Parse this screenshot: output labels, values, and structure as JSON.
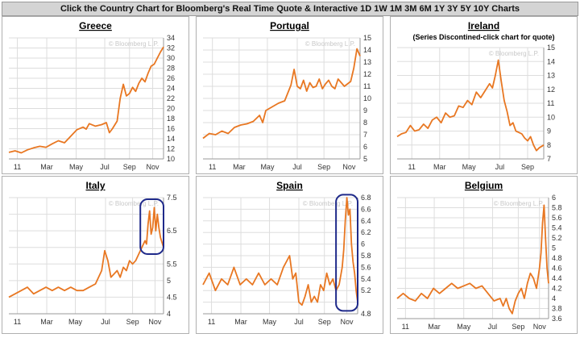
{
  "header": {
    "text": "Click the Country Chart for Bloomberg's Real Time Quote & Interactive 1D 1W 1M 3M 6M 1Y 3Y 5Y 10Y Charts"
  },
  "colors": {
    "line": "#e87722",
    "highlight": "#1f2a8a",
    "grid": "#dddddd",
    "axis": "#999999"
  },
  "watermark": "© Bloomberg L.P.",
  "chart_data": [
    {
      "type": "line",
      "title": "Greece",
      "subtitle": "",
      "ylim": [
        10,
        34
      ],
      "yticks": [
        10,
        12,
        14,
        16,
        18,
        20,
        22,
        24,
        26,
        28,
        30,
        32,
        34
      ],
      "xlabels": [
        "11",
        "Mar",
        "May",
        "Jul",
        "Sep",
        "Nov"
      ],
      "xlabel_pos": [
        0.055,
        0.245,
        0.435,
        0.62,
        0.78,
        0.93
      ],
      "grid": true,
      "x": [
        0,
        0.04,
        0.08,
        0.12,
        0.16,
        0.2,
        0.24,
        0.28,
        0.32,
        0.36,
        0.4,
        0.44,
        0.48,
        0.5,
        0.52,
        0.56,
        0.6,
        0.63,
        0.65,
        0.67,
        0.7,
        0.72,
        0.74,
        0.76,
        0.78,
        0.8,
        0.82,
        0.84,
        0.86,
        0.88,
        0.9,
        0.92,
        0.94,
        0.96,
        0.98,
        1.0
      ],
      "values": [
        11.3,
        11.6,
        11.2,
        11.8,
        12.2,
        12.5,
        12.3,
        13.0,
        13.6,
        13.2,
        14.5,
        15.8,
        16.3,
        15.9,
        17.0,
        16.5,
        16.8,
        17.2,
        15.2,
        16.0,
        17.5,
        22.0,
        24.8,
        22.5,
        23.0,
        24.2,
        23.4,
        25.0,
        26.0,
        25.3,
        27.0,
        28.4,
        28.8,
        30.0,
        31.2,
        32.2
      ]
    },
    {
      "type": "line",
      "title": "Portugal",
      "subtitle": "",
      "ylim": [
        5,
        15
      ],
      "yticks": [
        5,
        6,
        7,
        8,
        9,
        10,
        11,
        12,
        13,
        14,
        15
      ],
      "xlabels": [
        "11",
        "Mar",
        "May",
        "Jul",
        "Sep",
        "Nov"
      ],
      "xlabel_pos": [
        0.06,
        0.23,
        0.41,
        0.6,
        0.77,
        0.93
      ],
      "grid": true,
      "x": [
        0,
        0.04,
        0.08,
        0.12,
        0.16,
        0.2,
        0.24,
        0.28,
        0.32,
        0.36,
        0.38,
        0.4,
        0.44,
        0.48,
        0.52,
        0.56,
        0.58,
        0.6,
        0.62,
        0.64,
        0.66,
        0.68,
        0.7,
        0.72,
        0.74,
        0.76,
        0.78,
        0.8,
        0.82,
        0.84,
        0.86,
        0.88,
        0.9,
        0.92,
        0.94,
        0.96,
        0.98,
        1.0
      ],
      "values": [
        6.7,
        7.1,
        7.0,
        7.3,
        7.1,
        7.6,
        7.8,
        7.9,
        8.1,
        8.6,
        8.0,
        9.0,
        9.3,
        9.6,
        9.8,
        11.1,
        12.4,
        11.0,
        10.8,
        11.5,
        10.6,
        11.3,
        10.9,
        11.0,
        11.6,
        10.8,
        11.2,
        11.5,
        11.0,
        10.8,
        11.6,
        11.3,
        11.0,
        11.2,
        11.4,
        12.5,
        14.1,
        13.5
      ]
    },
    {
      "type": "line",
      "title": "Ireland",
      "subtitle": "(Series Discontined-click chart for quote)",
      "ylim": [
        7,
        15
      ],
      "yticks": [
        7,
        8,
        9,
        10,
        11,
        12,
        13,
        14,
        15
      ],
      "xlabels": [
        "11",
        "Mar",
        "May",
        "Jul",
        "Sep"
      ],
      "xlabel_pos": [
        0.1,
        0.29,
        0.49,
        0.7,
        0.89
      ],
      "grid": true,
      "x": [
        0,
        0.03,
        0.06,
        0.09,
        0.12,
        0.15,
        0.18,
        0.21,
        0.24,
        0.27,
        0.3,
        0.33,
        0.36,
        0.39,
        0.42,
        0.45,
        0.48,
        0.51,
        0.54,
        0.57,
        0.6,
        0.63,
        0.65,
        0.67,
        0.69,
        0.71,
        0.73,
        0.75,
        0.77,
        0.79,
        0.81,
        0.83,
        0.85,
        0.87,
        0.89,
        0.91,
        0.93,
        0.95,
        0.97,
        1.0
      ],
      "values": [
        8.6,
        8.8,
        8.9,
        9.4,
        9.0,
        9.1,
        9.5,
        9.2,
        9.8,
        10.0,
        9.6,
        10.3,
        10.0,
        10.1,
        10.8,
        10.7,
        11.2,
        10.9,
        11.8,
        11.4,
        11.9,
        12.4,
        12.1,
        13.0,
        14.1,
        12.6,
        11.2,
        10.4,
        9.4,
        9.6,
        9.0,
        8.9,
        8.8,
        8.5,
        8.3,
        8.6,
        8.0,
        7.6,
        7.8,
        8.0
      ]
    },
    {
      "type": "line",
      "title": "Italy",
      "subtitle": "",
      "ylim": [
        4,
        7.5
      ],
      "yticks": [
        4,
        4.5,
        5,
        5.5,
        6,
        6.5,
        7,
        7.5
      ],
      "ytick_labels": [
        "4",
        "4.5",
        "5",
        "5.5",
        "",
        "6.5",
        "",
        "7.5"
      ],
      "xlabels": [
        "11",
        "Mar",
        "May",
        "Jul",
        "Sep",
        "Nov"
      ],
      "xlabel_pos": [
        0.055,
        0.245,
        0.43,
        0.625,
        0.8,
        0.945
      ],
      "grid": true,
      "x": [
        0,
        0.04,
        0.08,
        0.12,
        0.16,
        0.2,
        0.24,
        0.28,
        0.32,
        0.36,
        0.4,
        0.44,
        0.48,
        0.52,
        0.56,
        0.6,
        0.62,
        0.64,
        0.66,
        0.68,
        0.7,
        0.72,
        0.74,
        0.76,
        0.78,
        0.8,
        0.82,
        0.84,
        0.86,
        0.88,
        0.89,
        0.9,
        0.91,
        0.92,
        0.93,
        0.94,
        0.95,
        0.96,
        0.97,
        0.98,
        1.0
      ],
      "values": [
        4.5,
        4.6,
        4.7,
        4.8,
        4.6,
        4.7,
        4.8,
        4.7,
        4.8,
        4.7,
        4.8,
        4.7,
        4.7,
        4.8,
        4.9,
        5.3,
        5.9,
        5.6,
        5.1,
        5.2,
        5.3,
        5.1,
        5.4,
        5.3,
        5.6,
        5.5,
        5.6,
        5.8,
        6.0,
        6.2,
        6.1,
        6.7,
        7.1,
        6.4,
        6.6,
        7.2,
        6.5,
        7.0,
        6.6,
        6.3,
        6.0
      ]
    },
    {
      "type": "line",
      "title": "Spain",
      "subtitle": "",
      "ylim": [
        4.8,
        6.8
      ],
      "yticks": [
        4.8,
        5,
        5.2,
        5.4,
        5.6,
        5.8,
        6,
        6.2,
        6.4,
        6.6,
        6.8
      ],
      "ytick_labels": [
        "4.8",
        "",
        "5.2",
        "5.4",
        "5.6",
        "5.8",
        "6",
        "6.2",
        "6.4",
        "6.6",
        "6.8"
      ],
      "xlabels": [
        "11",
        "Mar",
        "May",
        "Jul",
        "Sep",
        "Nov"
      ],
      "xlabel_pos": [
        0.055,
        0.245,
        0.43,
        0.62,
        0.785,
        0.93
      ],
      "grid": true,
      "x": [
        0,
        0.04,
        0.08,
        0.12,
        0.16,
        0.2,
        0.24,
        0.28,
        0.32,
        0.36,
        0.4,
        0.44,
        0.48,
        0.52,
        0.56,
        0.58,
        0.6,
        0.62,
        0.64,
        0.66,
        0.68,
        0.7,
        0.72,
        0.74,
        0.76,
        0.78,
        0.8,
        0.82,
        0.84,
        0.86,
        0.88,
        0.9,
        0.91,
        0.92,
        0.93,
        0.94,
        0.95,
        0.96,
        0.97,
        0.98,
        0.99,
        1.0
      ],
      "values": [
        5.3,
        5.5,
        5.2,
        5.4,
        5.3,
        5.6,
        5.3,
        5.4,
        5.3,
        5.5,
        5.3,
        5.4,
        5.3,
        5.6,
        5.8,
        5.4,
        5.5,
        5.0,
        4.95,
        5.1,
        5.3,
        5.0,
        5.1,
        5.0,
        5.3,
        5.2,
        5.5,
        5.3,
        5.4,
        5.2,
        5.3,
        5.6,
        5.9,
        6.4,
        6.8,
        6.5,
        6.6,
        6.0,
        5.7,
        5.5,
        5.2,
        5.0
      ]
    },
    {
      "type": "line",
      "title": "Belgium",
      "subtitle": "",
      "ylim": [
        3.6,
        6
      ],
      "yticks": [
        3.6,
        3.8,
        4,
        4.2,
        4.4,
        4.6,
        4.8,
        5,
        5.2,
        5.4,
        5.6,
        5.8,
        6
      ],
      "ytick_labels": [
        "3.6",
        "3.8",
        "4",
        "4.2",
        "4.4",
        "4.6",
        "4.8",
        "5",
        "5.2",
        "5.4",
        "5.6",
        "5.8",
        "6"
      ],
      "xlabels": [
        "11",
        "Mar",
        "May",
        "Jul",
        "Sep",
        "Nov"
      ],
      "xlabel_pos": [
        0.055,
        0.245,
        0.44,
        0.63,
        0.8,
        0.94
      ],
      "grid": true,
      "x": [
        0,
        0.04,
        0.08,
        0.12,
        0.16,
        0.2,
        0.24,
        0.28,
        0.32,
        0.36,
        0.4,
        0.44,
        0.48,
        0.52,
        0.56,
        0.6,
        0.64,
        0.68,
        0.7,
        0.72,
        0.74,
        0.76,
        0.78,
        0.8,
        0.82,
        0.84,
        0.86,
        0.88,
        0.9,
        0.92,
        0.94,
        0.95,
        0.96,
        0.97,
        0.98,
        0.99,
        1.0
      ],
      "values": [
        4.0,
        4.1,
        4.0,
        3.95,
        4.1,
        4.0,
        4.2,
        4.1,
        4.2,
        4.3,
        4.2,
        4.25,
        4.3,
        4.2,
        4.25,
        4.1,
        3.95,
        4.0,
        3.85,
        4.0,
        3.8,
        3.7,
        3.95,
        4.1,
        4.2,
        4.0,
        4.3,
        4.5,
        4.4,
        4.2,
        4.6,
        4.9,
        5.5,
        5.85,
        5.2,
        4.6,
        4.3
      ]
    }
  ],
  "highlights": [
    {
      "chart": 3,
      "x0": 0.85,
      "x1": 1.0,
      "y0": 5.8,
      "y1": 7.45
    },
    {
      "chart": 4,
      "x0": 0.86,
      "x1": 1.0,
      "y0": 4.85,
      "y1": 6.85
    }
  ]
}
